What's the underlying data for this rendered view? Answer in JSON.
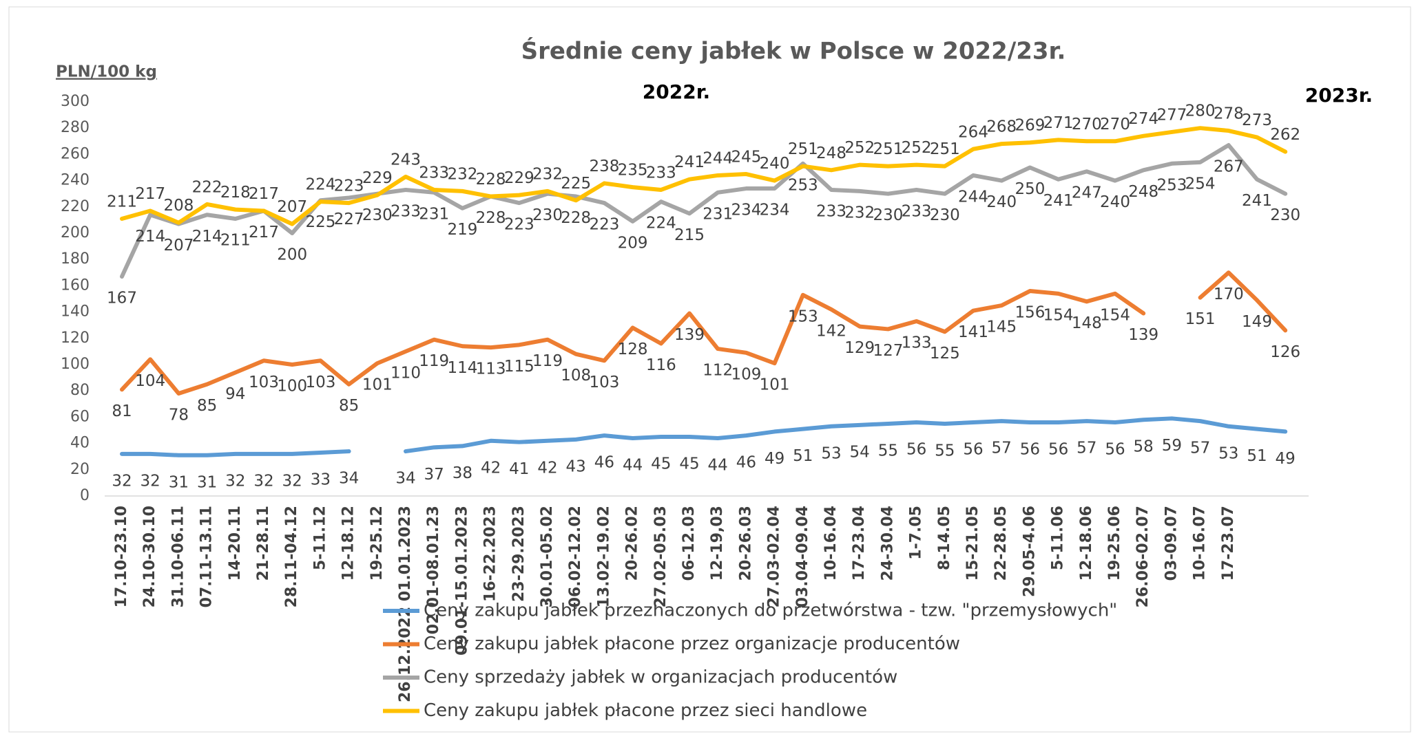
{
  "chart_data": {
    "type": "line",
    "title": "Średnie ceny jabłek w Polsce w 2022/23r.",
    "y_label": "PLN/100 kg",
    "annotations": [
      "2022r.",
      "2023r."
    ],
    "categories": [
      "17.10-23.10",
      "24.10-30.10",
      "31.10-06.11",
      "07.11-13.11",
      "14-20.11",
      "21-28.11",
      "28.11-04.12",
      "5-11.12",
      "12-18.12",
      "19-25.12",
      "26.12.2022 01.01.2023",
      "02.01-08.01.23",
      "09.01-15.01.2023",
      "16-22.2023",
      "23-29.2023",
      "30.01-05.02",
      "06.02-12.02",
      "13.02-19.02",
      "20-26.02",
      "27.02-05.03",
      "06-12.03",
      "12-19,03",
      "20-26.03",
      "27.03-02.04",
      "03.04-09.04",
      "10-16.04",
      "17-23.04",
      "24-30.04",
      "1-7.05",
      "8-14.05",
      "15-21.05",
      "22-28.05",
      "29.05-4.06",
      "5-11.06",
      "12-18.06",
      "19-25.06",
      "26.06-02.07",
      "03-09.07",
      "10-16.07",
      "17-23.07",
      null,
      null
    ],
    "series": [
      {
        "name": "Ceny zakupu jabłek przeznaczonych do przetwórstwa - tzw. \"przemysłowych\"",
        "color": "#5b9bd5",
        "values": [
          32,
          32,
          31,
          31,
          32,
          32,
          32,
          33,
          34,
          null,
          34,
          37,
          38,
          42,
          41,
          42,
          43,
          46,
          44,
          45,
          45,
          44,
          46,
          49,
          51,
          53,
          54,
          55,
          56,
          55,
          56,
          57,
          56,
          56,
          57,
          56,
          58,
          59,
          57,
          53,
          51,
          49
        ]
      },
      {
        "name": "Ceny zakupu jabłek płacone przez organizacje  producentów",
        "color": "#ed7d31",
        "values": [
          81,
          104,
          78,
          85,
          94,
          103,
          100,
          103,
          85,
          101,
          110,
          119,
          114,
          113,
          115,
          119,
          108,
          103,
          128,
          116,
          139,
          112,
          109,
          101,
          153,
          142,
          129,
          127,
          133,
          125,
          141,
          145,
          156,
          154,
          148,
          154,
          139,
          null,
          151,
          170,
          149,
          126
        ]
      },
      {
        "name": "Ceny sprzedaży jabłek w organizacjach  producentów",
        "color": "#a5a5a5",
        "values": [
          167,
          214,
          207,
          214,
          211,
          217,
          200,
          225,
          227,
          230,
          233,
          231,
          219,
          228,
          223,
          230,
          228,
          223,
          209,
          224,
          215,
          231,
          234,
          234,
          253,
          233,
          232,
          230,
          233,
          230,
          244,
          240,
          250,
          241,
          247,
          240,
          248,
          253,
          254,
          267,
          241,
          230
        ]
      },
      {
        "name": "Ceny zakupu jabłek płacone przez sieci handlowe",
        "color": "#ffc000",
        "values": [
          211,
          217,
          208,
          222,
          218,
          217,
          207,
          224,
          223,
          229,
          243,
          233,
          232,
          228,
          229,
          232,
          225,
          238,
          235,
          233,
          241,
          244,
          245,
          240,
          251,
          248,
          252,
          251,
          252,
          251,
          264,
          268,
          269,
          271,
          270,
          270,
          274,
          277,
          280,
          278,
          273,
          262
        ]
      }
    ],
    "ylim": [
      0,
      300
    ],
    "yticks": [
      0,
      20,
      40,
      60,
      80,
      100,
      120,
      140,
      160,
      180,
      200,
      220,
      240,
      260,
      280,
      300
    ],
    "grid": false,
    "legend": "bottom"
  }
}
